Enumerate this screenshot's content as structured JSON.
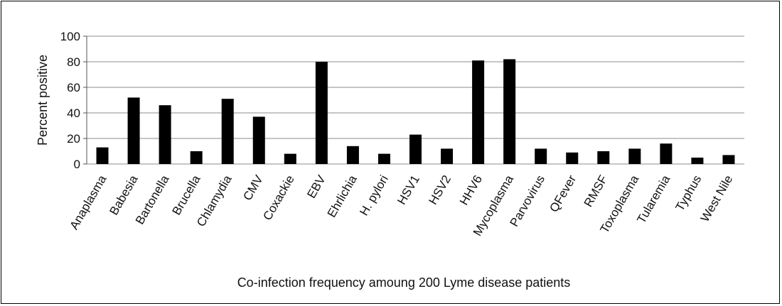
{
  "chart_data": {
    "type": "bar",
    "title": "",
    "xlabel": "Co-infection frequency amoung 200 Lyme disease patients",
    "ylabel": "Percent positive",
    "ylim": [
      0,
      100
    ],
    "yticks": [
      0,
      20,
      40,
      60,
      80,
      100
    ],
    "grid": true,
    "legend": "none",
    "bar_color": "#000000",
    "categories": [
      "Anaplasma",
      "Babesia",
      "Bartonella",
      "Brucella",
      "Chlamydia",
      "CMV",
      "Coxackie",
      "EBV",
      "Ehrlichia",
      "H. pylori",
      "HSV1",
      "HSV2",
      "HHV6",
      "Mycoplasma",
      "Parvovirus",
      "QFever",
      "RMSF",
      "Toxoplasma",
      "Tularemia",
      "Typhus",
      "West Nile"
    ],
    "values": [
      13,
      52,
      46,
      10,
      51,
      37,
      8,
      80,
      14,
      8,
      23,
      12,
      81,
      82,
      12,
      9,
      10,
      12,
      16,
      5,
      7
    ]
  }
}
